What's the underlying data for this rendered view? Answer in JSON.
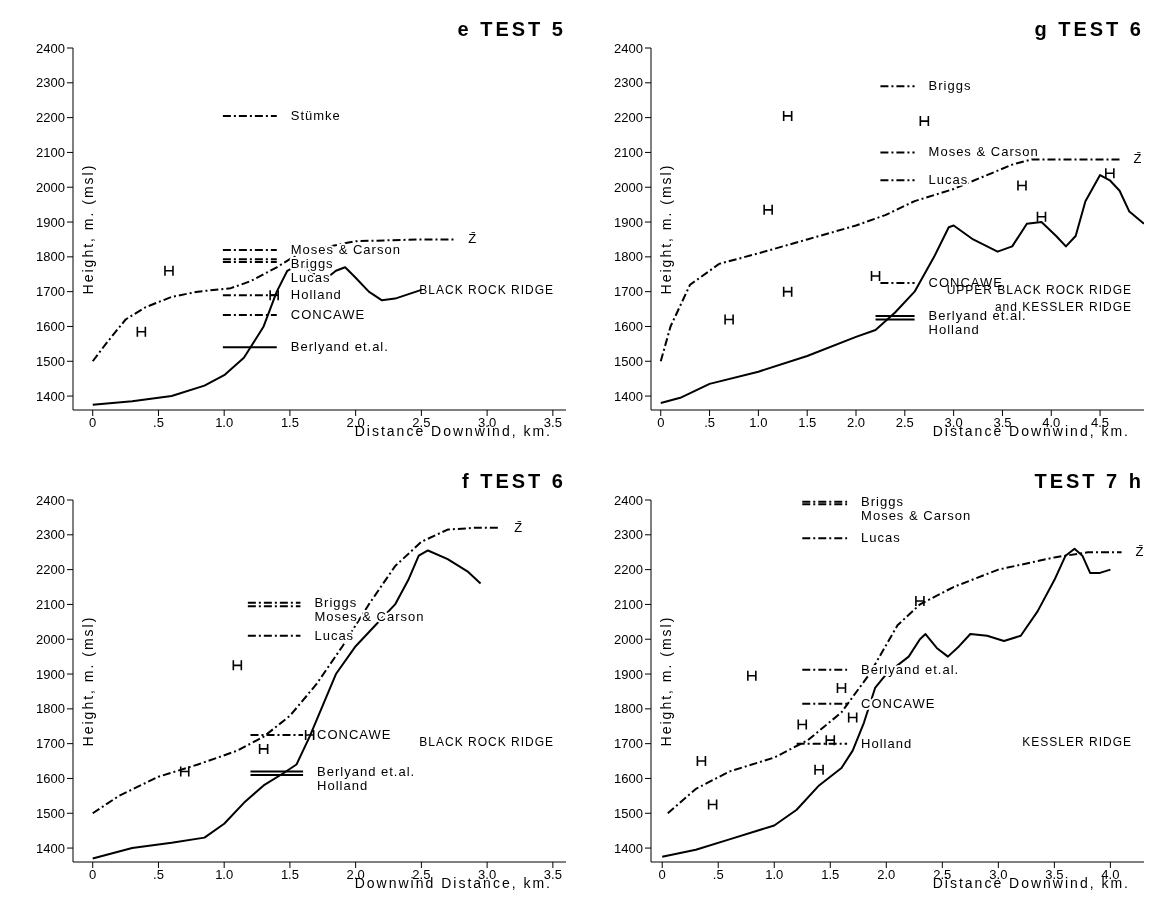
{
  "chart_data": [
    {
      "type": "line",
      "title": "e TEST 5",
      "xlabel": "Distance Downwind, km.",
      "ylabel": "Height, m. (msl)",
      "marker": "none",
      "xlim": [
        -0.15,
        3.6
      ],
      "ylim": [
        1360,
        2400
      ],
      "xticks": [
        0,
        {
          "value": 0.5,
          "label": ".5"
        },
        {
          "value": 1,
          "label": "1.0"
        },
        1.5,
        {
          "value": 2,
          "label": "2.0"
        },
        2.5,
        {
          "value": 3,
          "label": "3.0"
        },
        3.5
      ],
      "yticks": [
        1400,
        1500,
        1600,
        1700,
        1800,
        1900,
        2000,
        2100,
        2200,
        2300,
        2400
      ],
      "series": [
        {
          "color": "#000000",
          "line_style": "solid",
          "x": [
            0,
            0.3,
            0.6,
            0.85,
            1.0,
            1.15,
            1.3,
            1.4,
            1.48,
            1.55,
            1.62,
            1.75,
            1.85,
            1.92,
            2.0,
            2.1,
            2.2,
            2.3,
            2.5
          ],
          "values": [
            1375,
            1385,
            1400,
            1430,
            1460,
            1510,
            1600,
            1700,
            1760,
            1775,
            1770,
            1730,
            1760,
            1770,
            1740,
            1700,
            1675,
            1680,
            1705
          ]
        },
        {
          "name": "Z̄",
          "color": "#000000",
          "line_style": "dashed",
          "x": [
            0,
            0.1,
            0.25,
            0.4,
            0.6,
            0.8,
            1.05,
            1.2,
            1.4,
            1.55,
            1.8,
            2.0,
            2.5,
            2.75
          ],
          "values": [
            1500,
            1550,
            1620,
            1655,
            1685,
            1700,
            1710,
            1730,
            1770,
            1805,
            1830,
            1845,
            1850,
            1850
          ]
        },
        {
          "name": "Stümke",
          "color": "#000000",
          "line_style": "dashed",
          "x": [
            0.99,
            1.4
          ],
          "values": [
            2205,
            2205
          ]
        },
        {
          "name": "Moses & Carson",
          "color": "#000000",
          "line_style": "dashed",
          "x": [
            0.99,
            1.4
          ],
          "values": [
            1820,
            1820
          ]
        },
        {
          "name": "Briggs",
          "color": "#000000",
          "line_style": "dashed",
          "x": [
            0.99,
            1.4
          ],
          "values": [
            1793,
            1793
          ]
        },
        {
          "name": "Lucas",
          "color": "#000000",
          "line_style": "dashed",
          "x": [
            0.99,
            1.4
          ],
          "values": [
            1785,
            1785
          ]
        },
        {
          "name": "Holland",
          "color": "#000000",
          "line_style": "dashed",
          "x": [
            0.99,
            1.4
          ],
          "values": [
            1690,
            1690
          ]
        },
        {
          "name": "CONCAWE",
          "color": "#000000",
          "line_style": "dashed",
          "x": [
            0.99,
            1.4
          ],
          "values": [
            1633,
            1633
          ]
        },
        {
          "name": "Berlyand et.al.",
          "color": "#000000",
          "line_style": "solid",
          "x": [
            0.99,
            1.4
          ],
          "values": [
            1540,
            1540
          ]
        },
        {
          "type": "scatter",
          "marker": "cross",
          "color": "#000000",
          "x": [
            0.58,
            0.37,
            1.38
          ],
          "values": [
            1760,
            1585,
            1690
          ]
        }
      ],
      "annotations": [
        "BLACK ROCK RIDGE"
      ]
    },
    {
      "type": "line",
      "title": "g TEST 6",
      "xlabel": "Distance Downwind, km.",
      "ylabel": "Height, m. (msl)",
      "marker": "none",
      "xlim": [
        -0.1,
        4.95
      ],
      "ylim": [
        1360,
        2400
      ],
      "xticks": [
        0,
        {
          "value": 0.5,
          "label": ".5"
        },
        {
          "value": 1,
          "label": "1.0"
        },
        1.5,
        {
          "value": 2,
          "label": "2.0"
        },
        2.5,
        {
          "value": 3,
          "label": "3.0"
        },
        3.5,
        {
          "value": 4,
          "label": "4.0"
        },
        4.5
      ],
      "yticks": [
        1400,
        1500,
        1600,
        1700,
        1800,
        1900,
        2000,
        2100,
        2200,
        2300,
        2400
      ],
      "series": [
        {
          "color": "#000000",
          "line_style": "solid",
          "x": [
            0,
            0.2,
            0.5,
            1.0,
            1.5,
            2.0,
            2.2,
            2.4,
            2.6,
            2.8,
            2.95,
            3.0,
            3.2,
            3.45,
            3.6,
            3.75,
            3.9,
            4.05,
            4.15,
            4.25,
            4.35,
            4.5,
            4.6,
            4.7,
            4.8,
            4.95
          ],
          "values": [
            1380,
            1395,
            1435,
            1470,
            1515,
            1570,
            1590,
            1640,
            1700,
            1800,
            1885,
            1890,
            1850,
            1815,
            1830,
            1895,
            1900,
            1860,
            1830,
            1860,
            1960,
            2035,
            2020,
            1990,
            1930,
            1895
          ]
        },
        {
          "name": "Z̄",
          "color": "#000000",
          "line_style": "dashed",
          "x": [
            0,
            0.1,
            0.3,
            0.6,
            1.0,
            1.5,
            2.0,
            2.3,
            2.6,
            3.0,
            3.3,
            3.6,
            3.8,
            4.2,
            4.7
          ],
          "values": [
            1500,
            1600,
            1720,
            1780,
            1810,
            1850,
            1890,
            1920,
            1960,
            1995,
            2030,
            2065,
            2080,
            2080,
            2080
          ]
        },
        {
          "name": "Briggs",
          "color": "#000000",
          "line_style": "dashed",
          "x": [
            2.25,
            2.6
          ],
          "values": [
            2290,
            2290
          ]
        },
        {
          "name": "Moses & Carson",
          "color": "#000000",
          "line_style": "dashed",
          "x": [
            2.25,
            2.6
          ],
          "values": [
            2100,
            2100
          ]
        },
        {
          "name": "Lucas",
          "color": "#000000",
          "line_style": "dashed",
          "x": [
            2.25,
            2.6
          ],
          "values": [
            2020,
            2020
          ]
        },
        {
          "name": "CONCAWE",
          "color": "#000000",
          "line_style": "dashed",
          "x": [
            2.25,
            2.6
          ],
          "values": [
            1725,
            1725
          ]
        },
        {
          "name": "Berlyand et.al.",
          "color": "#000000",
          "line_style": "solid",
          "x": [
            2.2,
            2.6
          ],
          "values": [
            1630,
            1630
          ]
        },
        {
          "name": "Holland",
          "color": "#000000",
          "line_style": "solid",
          "x": [
            2.2,
            2.6
          ],
          "values": [
            1620,
            1620
          ]
        },
        {
          "type": "scatter",
          "marker": "cross",
          "color": "#000000",
          "x": [
            1.3,
            2.7,
            1.1,
            3.7,
            3.9,
            4.6,
            2.2,
            1.3,
            0.7
          ],
          "values": [
            2205,
            2190,
            1935,
            2005,
            1915,
            2040,
            1745,
            1700,
            1620
          ]
        }
      ],
      "annotations": [
        "UPPER BLACK ROCK RIDGE",
        "and KESSLER RIDGE"
      ]
    },
    {
      "type": "line",
      "title": "f TEST 6",
      "xlabel": "Downwind Distance, km.",
      "ylabel": "Height, m. (msl)",
      "marker": "none",
      "xlim": [
        -0.15,
        3.6
      ],
      "ylim": [
        1360,
        2400
      ],
      "xticks": [
        0,
        {
          "value": 0.5,
          "label": ".5"
        },
        {
          "value": 1,
          "label": "1.0"
        },
        1.5,
        {
          "value": 2,
          "label": "2.0"
        },
        2.5,
        {
          "value": 3,
          "label": "3.0"
        },
        3.5
      ],
      "yticks": [
        1400,
        1500,
        1600,
        1700,
        1800,
        1900,
        2000,
        2100,
        2200,
        2300,
        2400
      ],
      "series": [
        {
          "color": "#000000",
          "line_style": "solid",
          "x": [
            0,
            0.3,
            0.6,
            0.85,
            1.0,
            1.15,
            1.3,
            1.45,
            1.55,
            1.65,
            1.75,
            1.85,
            2.0,
            2.15,
            2.3,
            2.4,
            2.48,
            2.55,
            2.7,
            2.85,
            2.95
          ],
          "values": [
            1370,
            1400,
            1415,
            1430,
            1470,
            1530,
            1580,
            1615,
            1640,
            1720,
            1810,
            1900,
            1980,
            2040,
            2100,
            2170,
            2240,
            2255,
            2230,
            2195,
            2160
          ]
        },
        {
          "name": "Z̄",
          "color": "#000000",
          "line_style": "dashed",
          "x": [
            0,
            0.2,
            0.5,
            0.8,
            1.1,
            1.3,
            1.5,
            1.7,
            1.9,
            2.1,
            2.3,
            2.5,
            2.7,
            2.9,
            3.1
          ],
          "values": [
            1500,
            1550,
            1605,
            1640,
            1680,
            1720,
            1780,
            1870,
            1980,
            2100,
            2210,
            2280,
            2315,
            2320,
            2320
          ]
        },
        {
          "name": "Briggs",
          "color": "#000000",
          "line_style": "dashed",
          "x": [
            1.18,
            1.58
          ],
          "values": [
            2105,
            2105
          ]
        },
        {
          "name": "Moses & Carson",
          "color": "#000000",
          "line_style": "dashed",
          "x": [
            1.18,
            1.58
          ],
          "values": [
            2095,
            2095
          ]
        },
        {
          "name": "Lucas",
          "color": "#000000",
          "line_style": "dashed",
          "x": [
            1.18,
            1.58
          ],
          "values": [
            2010,
            2010
          ]
        },
        {
          "name": "CONCAWE",
          "color": "#000000",
          "line_style": "dashed",
          "x": [
            1.2,
            1.6
          ],
          "values": [
            1725,
            1725
          ]
        },
        {
          "name": "Berlyand et.al.",
          "color": "#000000",
          "line_style": "solid",
          "x": [
            1.2,
            1.6
          ],
          "values": [
            1620,
            1620
          ]
        },
        {
          "name": "Holland",
          "color": "#000000",
          "line_style": "solid",
          "x": [
            1.2,
            1.6
          ],
          "values": [
            1610,
            1610
          ]
        },
        {
          "type": "scatter",
          "marker": "cross",
          "color": "#000000",
          "x": [
            1.1,
            1.3,
            0.7,
            1.65
          ],
          "values": [
            1925,
            1685,
            1620,
            1725
          ]
        }
      ],
      "annotations": [
        "BLACK ROCK RIDGE"
      ]
    },
    {
      "type": "line",
      "title": "TEST 7 h",
      "xlabel": "Distance Downwind, km.",
      "ylabel": "Height, m. (msl)",
      "marker": "none",
      "xlim": [
        -0.1,
        4.3
      ],
      "ylim": [
        1360,
        2400
      ],
      "xticks": [
        0,
        {
          "value": 0.5,
          "label": ".5"
        },
        {
          "value": 1,
          "label": "1.0"
        },
        1.5,
        {
          "value": 2,
          "label": "2.0"
        },
        2.5,
        {
          "value": 3,
          "label": "3.0"
        },
        3.5,
        {
          "value": 4,
          "label": "4.0"
        }
      ],
      "yticks": [
        1400,
        1500,
        1600,
        1700,
        1800,
        1900,
        2000,
        2100,
        2200,
        2300,
        2400
      ],
      "series": [
        {
          "color": "#000000",
          "line_style": "solid",
          "x": [
            0,
            0.3,
            0.6,
            1.0,
            1.2,
            1.4,
            1.6,
            1.7,
            1.8,
            1.9,
            2.0,
            2.2,
            2.3,
            2.35,
            2.45,
            2.55,
            2.65,
            2.75,
            2.9,
            3.05,
            3.2,
            3.35,
            3.5,
            3.6,
            3.68,
            3.75,
            3.82,
            3.9,
            4.0
          ],
          "values": [
            1375,
            1395,
            1425,
            1465,
            1510,
            1580,
            1630,
            1680,
            1760,
            1860,
            1900,
            1950,
            2000,
            2015,
            1975,
            1950,
            1980,
            2015,
            2010,
            1995,
            2010,
            2080,
            2170,
            2240,
            2260,
            2240,
            2190,
            2190,
            2200
          ]
        },
        {
          "name": "Z̄",
          "color": "#000000",
          "line_style": "dashed",
          "x": [
            0.05,
            0.3,
            0.6,
            1.0,
            1.3,
            1.6,
            1.85,
            2.1,
            2.3,
            2.6,
            3.0,
            3.5,
            3.8,
            4.1
          ],
          "values": [
            1500,
            1570,
            1620,
            1660,
            1710,
            1790,
            1900,
            2040,
            2100,
            2150,
            2200,
            2235,
            2250,
            2250
          ]
        },
        {
          "name": "Briggs",
          "color": "#000000",
          "line_style": "dashed",
          "x": [
            1.25,
            1.65
          ],
          "values": [
            2395,
            2395
          ]
        },
        {
          "name": "Moses & Carson",
          "color": "#000000",
          "line_style": "dashed",
          "x": [
            1.25,
            1.65
          ],
          "values": [
            2388,
            2388
          ]
        },
        {
          "name": "Lucas",
          "color": "#000000",
          "line_style": "dashed",
          "x": [
            1.25,
            1.65
          ],
          "values": [
            2290,
            2290
          ]
        },
        {
          "name": "Berlyand et.al.",
          "color": "#000000",
          "line_style": "dashed",
          "x": [
            1.25,
            1.65
          ],
          "values": [
            1912,
            1912
          ]
        },
        {
          "name": "CONCAWE",
          "color": "#000000",
          "line_style": "dashed",
          "x": [
            1.25,
            1.65
          ],
          "values": [
            1815,
            1815
          ]
        },
        {
          "name": "Holland",
          "color": "#000000",
          "line_style": "dashed",
          "x": [
            1.2,
            1.65
          ],
          "values": [
            1700,
            1700
          ]
        },
        {
          "type": "scatter",
          "marker": "cross",
          "color": "#000000",
          "x": [
            0.35,
            0.45,
            0.8,
            1.6,
            1.25,
            1.7,
            1.5,
            1.4,
            2.3
          ],
          "values": [
            1650,
            1525,
            1895,
            1860,
            1755,
            1775,
            1710,
            1625,
            2110
          ]
        }
      ],
      "annotations": [
        "KESSLER RIDGE"
      ]
    }
  ]
}
